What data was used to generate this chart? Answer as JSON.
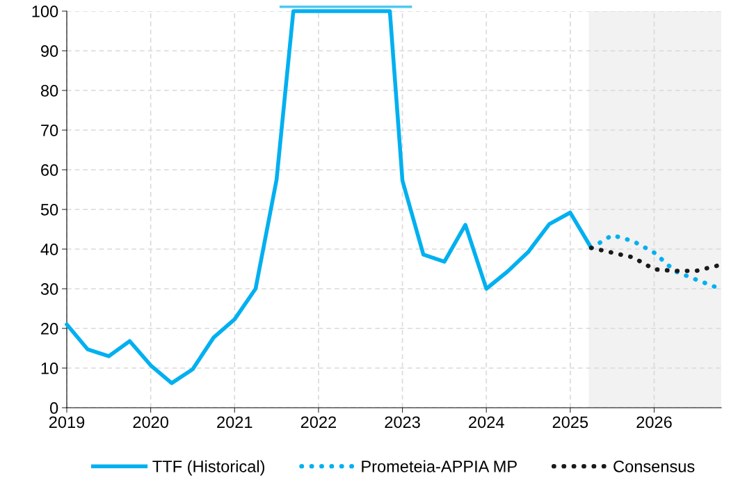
{
  "chart_data": {
    "type": "line",
    "xlim": [
      2019,
      2026.8
    ],
    "xticks": [
      2019,
      2020,
      2021,
      2022,
      2023,
      2024,
      2025,
      2026
    ],
    "ylim": [
      0,
      100
    ],
    "yticks": [
      0,
      10,
      20,
      30,
      40,
      50,
      60,
      70,
      80,
      90,
      100
    ],
    "grid": true,
    "legend": "bottom",
    "marker": "none",
    "bands": [
      {
        "axis": "x",
        "from": 2025.22,
        "to": 2026.8,
        "label": null,
        "color": "#f2f2f2"
      }
    ],
    "series": [
      {
        "name": "TTF (Historical)",
        "color": "#00b0f0",
        "line_style": "solid",
        "x": [
          2019,
          2019.25,
          2019.5,
          2019.75,
          2020,
          2020.25,
          2020.5,
          2020.75,
          2021,
          2021.25,
          2021.5,
          2021.7,
          2022.85,
          2023,
          2023.25,
          2023.5,
          2023.75,
          2024,
          2024.25,
          2024.5,
          2024.75,
          2025,
          2025.25
        ],
        "values": [
          21,
          14.7,
          13,
          16.8,
          10.7,
          6.2,
          9.7,
          17.7,
          22.3,
          30,
          57.5,
          100,
          100,
          57.3,
          38.6,
          36.8,
          46.1,
          30,
          34.3,
          39.3,
          46.3,
          49.2,
          40.3
        ]
      },
      {
        "name": "Prometeia-APPIA MP",
        "color": "#00b0f0",
        "line_style": "dotted",
        "x": [
          2025.25,
          2025.5,
          2025.75,
          2026,
          2026.25,
          2026.5,
          2026.75
        ],
        "values": [
          40.3,
          43.5,
          42,
          39.1,
          34.4,
          32.3,
          30.3
        ]
      },
      {
        "name": "Consensus",
        "color": "#1a1a1a",
        "line_style": "dotted",
        "x": [
          2025.25,
          2025.5,
          2025.75,
          2026,
          2026.25,
          2026.5,
          2026.75
        ],
        "values": [
          40.3,
          39.1,
          37.9,
          34.9,
          34.5,
          34.5,
          35.8
        ]
      }
    ]
  }
}
